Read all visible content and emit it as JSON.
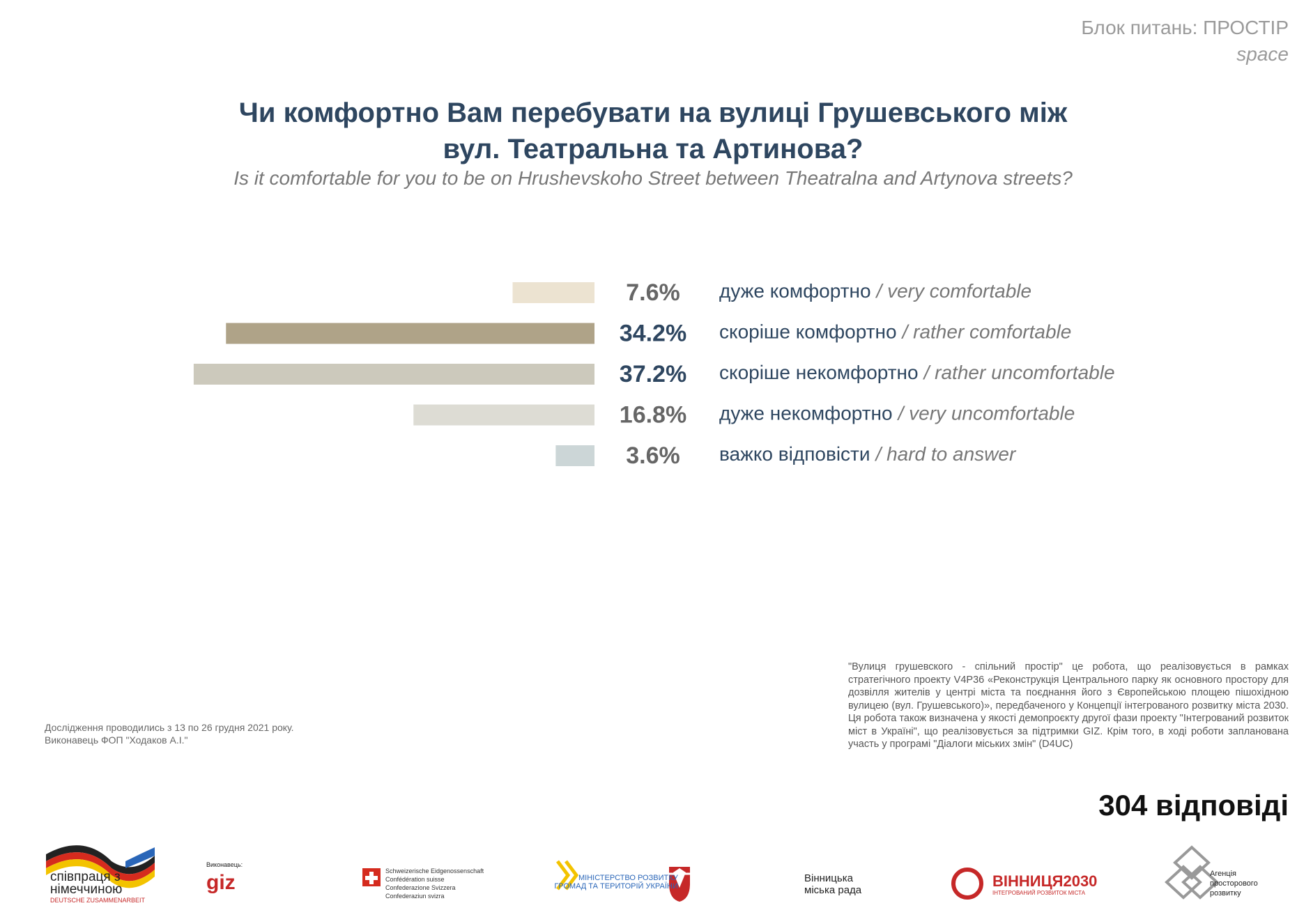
{
  "header": {
    "block": "Блок питань: ПРОСТІР",
    "block_en": "space"
  },
  "chart_data": {
    "type": "hbar",
    "title": [
      "Чи комфортно Вам перебувати на вулиці Грушевського між",
      "вул. Театральна та Артинова?"
    ],
    "subtitle": "Is it comfortable for you to be on Hrushevskoho Street between Theatralna and Artynova streets?",
    "categories": [
      "дуже комфортно",
      "скоріше комфортно",
      "скоріше некомфортно",
      "дуже некомфортно",
      "важко відповісти"
    ],
    "category_translations": [
      "/ very comfortable",
      "/ rather comfortable",
      "/ rather uncomfortable",
      "/ very uncomfortable",
      "/ hard to answer"
    ],
    "values": [
      7.6,
      34.2,
      37.2,
      16.8,
      3.6
    ],
    "value_labels": [
      "7.6%",
      "34.2%",
      "37.2%",
      "16.8%",
      "3.6%"
    ],
    "colors": [
      "#ece3d1",
      "#afa388",
      "#ccc9bc",
      "#dddcd4",
      "#ccd6d7"
    ],
    "value_label_colors": [
      "#666666",
      "#2e4660",
      "#2e4660",
      "#666666",
      "#666666"
    ]
  },
  "footnote": [
    "Дослідження проводились з 13 по 26 грудня 2021 року.",
    "Виконавець ФОП \"Ходаков А.І.\""
  ],
  "description": "\"Вулиця грушевского - спільний простір\" це робота, що реалізовується в рамках стратегічного проекту V4P36 «Реконструкція Центрального парку як основного простору для дозвілля жителів у центрі міста та поєднання його з Європейською площею пішохідною вулицею (вул. Грушевського)», передбаченого у Концепції інтегрованого розвитку міста 2030. Ця робота також визначена у якості демопроєкту другої фази проекту \"Інтегрований розвиток міст в Україні\", що реалізовується за підтримки GIZ. Крім того, в ході роботи запланована участь у програмі \"Діалоги міських змін\" (D4UC)",
  "responses": "304 відповіді",
  "logos": {
    "cooperation": [
      "співпраця з",
      "німеччиною",
      "DEUTSCHE ZUSAMMENARBEIT"
    ],
    "giz": [
      "Виконавець:",
      "giz"
    ],
    "swiss": [
      "Schweizerische Eidgenossenschaft",
      "Confédération suisse",
      "Confederazione Svizzera",
      "Confederaziun svizra"
    ],
    "ministry": [
      "МІНІСТЕРСТВО РОЗВИТКУ",
      "ГРОМАД ТА ТЕРИТОРІЙ УКРАЇНИ"
    ],
    "city": [
      "Вінницька",
      "міська рада"
    ],
    "vinnytsia": [
      "ВІННИЦЯ2030",
      "ІНТЕГРОВАНИЙ РОЗВИТОК МІСТА"
    ],
    "agency": [
      "Агенція",
      "просторового",
      "розвитку"
    ]
  }
}
